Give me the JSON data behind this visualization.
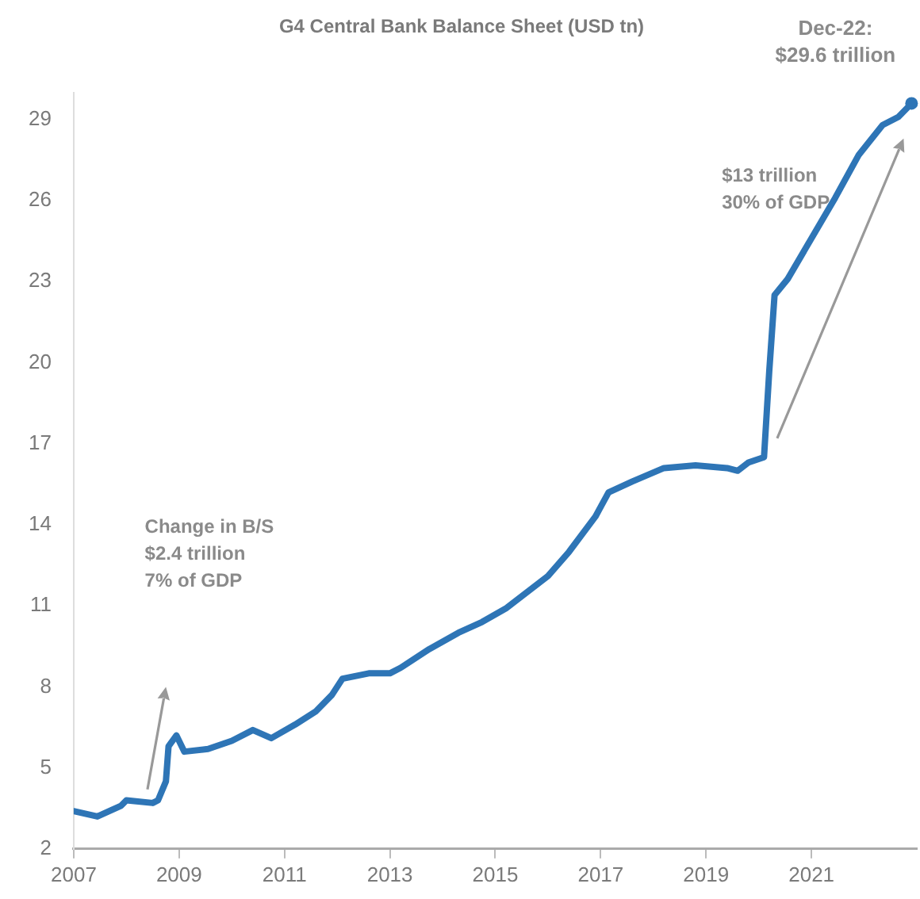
{
  "chart_data": {
    "type": "line",
    "title": "G4 Central Bank Balance Sheet (USD tn)",
    "x": [
      2007.0,
      2007.45,
      2007.9,
      2008.0,
      2008.5,
      2008.6,
      2008.75,
      2008.8,
      2008.95,
      2009.1,
      2009.55,
      2010.0,
      2010.4,
      2010.75,
      2011.2,
      2011.6,
      2011.9,
      2012.1,
      2012.6,
      2013.0,
      2013.2,
      2013.75,
      2014.3,
      2014.75,
      2015.2,
      2016.0,
      2016.4,
      2016.9,
      2017.15,
      2017.6,
      2018.2,
      2018.8,
      2019.4,
      2019.6,
      2019.8,
      2020.1,
      2020.2,
      2020.3,
      2020.55,
      2021.0,
      2021.45,
      2021.9,
      2022.35,
      2022.65,
      2022.9
    ],
    "series": [
      {
        "color": "#2e75b6",
        "values": [
          3.4,
          3.2,
          3.6,
          3.8,
          3.7,
          3.8,
          4.5,
          5.8,
          6.2,
          5.6,
          5.7,
          6.0,
          6.4,
          6.1,
          6.6,
          7.1,
          7.7,
          8.3,
          8.5,
          8.5,
          8.7,
          9.4,
          10.0,
          10.4,
          10.9,
          12.1,
          13.0,
          14.3,
          15.2,
          15.6,
          16.1,
          16.2,
          16.1,
          16.0,
          16.3,
          16.5,
          19.7,
          22.5,
          23.1,
          24.6,
          26.1,
          27.7,
          28.8,
          29.1,
          29.6
        ]
      }
    ],
    "xlim": [
      2007,
      2023
    ],
    "xticks": [
      2007,
      2009,
      2011,
      2013,
      2015,
      2017,
      2019,
      2021
    ],
    "ylim": [
      2,
      30
    ],
    "yticks": [
      2,
      5,
      8,
      11,
      14,
      17,
      20,
      23,
      26,
      29
    ],
    "grid": false,
    "legend": false,
    "annotations": [
      "Change in B/S\n$2.4 trillion\n7% of GDP",
      "$13 trillion\n30% of GDP",
      {
        "text": "Dec-22:\n$29.6 trillion",
        "x": 2022.9,
        "y": 29.6
      }
    ]
  }
}
